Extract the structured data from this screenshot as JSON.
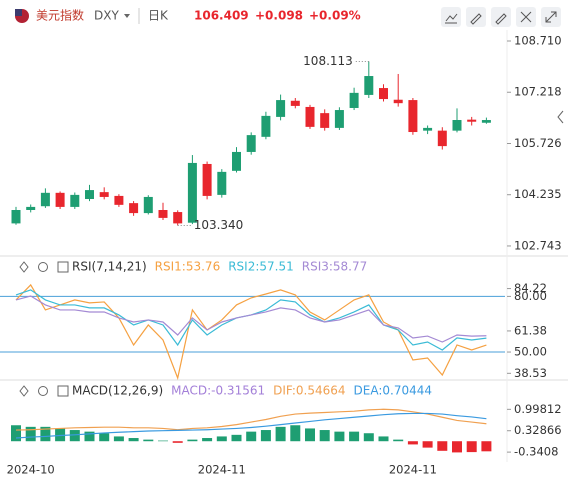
{
  "header": {
    "name": "美元指数",
    "symbol": "DXY",
    "period": "日K",
    "price": "106.409",
    "change": "+0.098",
    "change_pct": "+0.09%"
  },
  "chart_data": [
    {
      "type": "candlestick",
      "categories": [
        null,
        "2024-10",
        null,
        null,
        null,
        null,
        null,
        null,
        null,
        null,
        null,
        null,
        null,
        null,
        "2024-11",
        null,
        null,
        null,
        null,
        null,
        null,
        null,
        null,
        null,
        null,
        null,
        null,
        "2024-11",
        null,
        null,
        null,
        null,
        null
      ],
      "open": [
        103.4,
        103.79,
        103.9,
        104.29,
        103.88,
        104.11,
        104.31,
        104.2,
        103.99,
        103.7,
        103.79,
        103.73,
        103.42,
        105.13,
        104.23,
        104.93,
        105.48,
        105.92,
        106.5,
        106.97,
        106.79,
        106.61,
        106.18,
        106.76,
        107.14,
        107.34,
        107.0,
        106.99,
        106.1,
        106.1,
        106.1,
        106.42,
        106.33
      ],
      "high": [
        103.88,
        103.95,
        104.42,
        104.33,
        104.3,
        104.52,
        104.45,
        104.25,
        104.05,
        104.22,
        104.0,
        103.78,
        105.39,
        105.2,
        104.98,
        105.62,
        106.05,
        106.65,
        107.15,
        107.05,
        106.85,
        106.72,
        106.78,
        107.35,
        108.113,
        107.45,
        107.75,
        107.05,
        106.25,
        106.2,
        106.75,
        106.5,
        106.48
      ],
      "low": [
        103.36,
        103.72,
        103.85,
        103.82,
        103.82,
        104.05,
        104.1,
        103.88,
        103.62,
        103.66,
        103.5,
        103.34,
        103.38,
        104.1,
        104.15,
        104.88,
        105.4,
        105.85,
        106.4,
        106.75,
        106.15,
        106.1,
        106.12,
        106.7,
        107.05,
        106.95,
        106.8,
        105.98,
        106.0,
        105.55,
        106.05,
        106.25,
        106.3
      ],
      "close": [
        103.79,
        103.88,
        104.29,
        103.88,
        104.23,
        104.37,
        104.17,
        103.94,
        103.7,
        104.17,
        103.56,
        103.4,
        105.16,
        104.2,
        104.9,
        105.48,
        105.97,
        106.53,
        106.99,
        106.82,
        106.21,
        106.18,
        106.7,
        107.2,
        107.69,
        107.02,
        106.9,
        106.06,
        106.18,
        105.65,
        106.41,
        106.36,
        106.409
      ],
      "up_color": "#1e9e72",
      "down_color": "#e8262d",
      "ylim": [
        102.48,
        109.03
      ],
      "yticks": [
        {
          "value": 108.71,
          "label": "108.710"
        },
        107.218,
        105.726,
        104.235,
        102.743
      ],
      "annotations": [
        {
          "value": 108.113,
          "label": "108.113"
        },
        {
          "value": 103.34,
          "label": "103.340"
        }
      ]
    },
    {
      "type": "line",
      "title": "RSI(7,14,21)",
      "series": [
        {
          "name": "RSI1:53.76",
          "color": "#f5a142",
          "values": [
            78.1,
            86.2,
            72.7,
            75.4,
            78.1,
            76.5,
            77.0,
            68.4,
            53.8,
            64.6,
            56.5,
            36.0,
            72.7,
            61.9,
            67.3,
            75.4,
            79.2,
            81.3,
            83.5,
            80.8,
            71.6,
            67.3,
            72.7,
            78.1,
            80.8,
            66.2,
            61.9,
            45.7,
            46.8,
            37.6,
            53.8,
            51.1,
            53.76
          ]
        },
        {
          "name": "RSI2:57.51",
          "color": "#3bbbd6",
          "values": [
            80.8,
            83.5,
            78.1,
            75.4,
            75.4,
            73.8,
            73.8,
            70.0,
            64.6,
            67.3,
            64.6,
            53.8,
            67.3,
            59.2,
            64.6,
            68.4,
            70.0,
            72.7,
            78.1,
            77.0,
            70.0,
            66.2,
            68.4,
            71.6,
            75.4,
            64.6,
            61.9,
            53.8,
            55.4,
            51.1,
            57.6,
            56.5,
            57.51
          ]
        },
        {
          "name": "RSI3:58.77",
          "color": "#a48ad4",
          "values": [
            78.1,
            80.2,
            75.4,
            72.7,
            72.7,
            71.6,
            71.6,
            68.4,
            66.2,
            67.3,
            66.2,
            59.2,
            68.4,
            61.9,
            66.2,
            68.4,
            70.0,
            71.6,
            73.8,
            72.7,
            68.4,
            66.2,
            67.3,
            70.0,
            72.7,
            64.6,
            63.0,
            57.6,
            58.6,
            55.4,
            59.2,
            58.6,
            58.77
          ]
        }
      ],
      "ref_lines": [
        80,
        50
      ],
      "ref_color": "#4a9fd8",
      "ylim": [
        36,
        91
      ],
      "yticks": [
        84.22,
        {
          "value": 80,
          "label": "80.00"
        },
        61.38,
        {
          "value": 50,
          "label": "50.00"
        },
        38.53
      ]
    },
    {
      "type": "macd",
      "title": "MACD(12,26,9)",
      "histogram": {
        "name": "MACD:-0.31561",
        "color": "#a37fd8",
        "up_color": "#1e9e72",
        "down_color": "#e8262d",
        "values": [
          0.5,
          0.45,
          0.45,
          0.4,
          0.35,
          0.3,
          0.25,
          0.15,
          0.1,
          0.05,
          0.02,
          -0.05,
          0.05,
          0.1,
          0.15,
          0.2,
          0.3,
          0.35,
          0.45,
          0.5,
          0.4,
          0.35,
          0.3,
          0.3,
          0.25,
          0.15,
          0.05,
          -0.1,
          -0.2,
          -0.3,
          -0.35,
          -0.34,
          -0.31561
        ]
      },
      "series": [
        {
          "name": "DIF:0.54664",
          "color": "#f0a050",
          "values": [
            0.35,
            0.36,
            0.38,
            0.4,
            0.42,
            0.43,
            0.44,
            0.44,
            0.42,
            0.42,
            0.4,
            0.36,
            0.4,
            0.42,
            0.46,
            0.52,
            0.6,
            0.68,
            0.78,
            0.85,
            0.88,
            0.9,
            0.92,
            0.94,
            0.98,
            1.0,
            0.98,
            0.92,
            0.85,
            0.75,
            0.65,
            0.6,
            0.54664
          ]
        },
        {
          "name": "DEA:0.70444",
          "color": "#3a9ae0",
          "values": [
            0.1,
            0.13,
            0.15,
            0.18,
            0.2,
            0.23,
            0.26,
            0.28,
            0.3,
            0.32,
            0.33,
            0.34,
            0.35,
            0.36,
            0.38,
            0.4,
            0.43,
            0.47,
            0.52,
            0.57,
            0.62,
            0.67,
            0.71,
            0.75,
            0.79,
            0.83,
            0.86,
            0.87,
            0.87,
            0.85,
            0.8,
            0.76,
            0.70444
          ]
        }
      ],
      "ylim": [
        -0.65,
        1.29
      ],
      "yticks": [
        0.99812,
        0.32866,
        -0.3408
      ]
    }
  ]
}
